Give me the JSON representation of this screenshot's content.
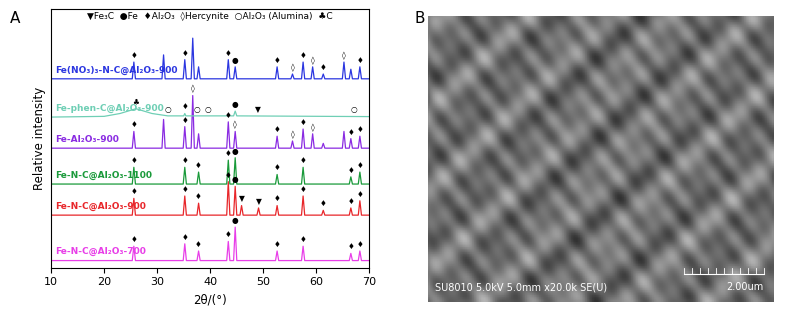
{
  "chart_data": {
    "type": "line",
    "panel_label": "A",
    "xlabel": "2θ/(°)",
    "ylabel": "Relative intensity",
    "xlim": [
      10,
      70
    ],
    "xticks": [
      10,
      20,
      30,
      40,
      50,
      60,
      70
    ],
    "ylim": [
      0,
      108
    ],
    "yticks": [],
    "tick_labels": "x",
    "phase_legend": [
      {
        "symbol": "▼",
        "name": "Fe₃C"
      },
      {
        "symbol": "●",
        "name": "Fe"
      },
      {
        "symbol": "♦",
        "name": "Al₂O₃"
      },
      {
        "symbol": "◊",
        "name": "Hercynite"
      },
      {
        "symbol": "○",
        "name": "Al₂O₃ (Alumina)"
      },
      {
        "symbol": "♣",
        "name": "C"
      }
    ],
    "series": [
      {
        "name": "Fe-N-C@Al₂O₃-700",
        "color": "#e83ee8",
        "x": [
          10,
          25.3,
          25.6,
          25.9,
          34.9,
          35.2,
          35.5,
          37.5,
          37.8,
          38.1,
          43.1,
          43.4,
          43.7,
          44.4,
          44.7,
          45.0,
          52.3,
          52.6,
          52.9,
          57.2,
          57.5,
          57.8,
          66.2,
          66.5,
          66.8,
          67.9,
          68.2,
          68.5,
          70
        ],
        "values": [
          3,
          3,
          9,
          3,
          3,
          10,
          3,
          3,
          7,
          3,
          3,
          11,
          3,
          3,
          17,
          3,
          3,
          7,
          3,
          3,
          9,
          3,
          3,
          6,
          3,
          3,
          7,
          3,
          3
        ],
        "markers": [
          {
            "symbol": "♦",
            "x": 25.6
          },
          {
            "symbol": "♦",
            "x": 35.2
          },
          {
            "symbol": "♦",
            "x": 37.8
          },
          {
            "symbol": "♦",
            "x": 43.4
          },
          {
            "symbol": "●",
            "x": 44.7
          },
          {
            "symbol": "♦",
            "x": 52.6
          },
          {
            "symbol": "♦",
            "x": 57.5
          },
          {
            "symbol": "♦",
            "x": 66.5
          },
          {
            "symbol": "♦",
            "x": 68.2
          }
        ]
      },
      {
        "name": "Fe-N-C@Al₂O₃-900",
        "color": "#e8262a",
        "x": [
          10,
          25.3,
          25.6,
          25.9,
          34.9,
          35.2,
          35.5,
          37.5,
          37.8,
          38.1,
          43.1,
          43.4,
          43.7,
          44.4,
          44.7,
          45.0,
          45.6,
          45.9,
          46.2,
          48.8,
          49.1,
          49.4,
          52.3,
          52.6,
          52.9,
          57.2,
          57.5,
          57.8,
          61.0,
          61.3,
          61.6,
          66.2,
          66.5,
          66.8,
          67.9,
          68.2,
          68.5,
          70
        ],
        "values": [
          22,
          22,
          29,
          22,
          22,
          30,
          22,
          22,
          27,
          22,
          22,
          36,
          22,
          22,
          34,
          22,
          22,
          26,
          22,
          22,
          25,
          22,
          22,
          26,
          22,
          22,
          30,
          22,
          22,
          24,
          22,
          22,
          25,
          22,
          22,
          28,
          22,
          22
        ],
        "markers": [
          {
            "symbol": "♦",
            "x": 25.6
          },
          {
            "symbol": "♦",
            "x": 35.2
          },
          {
            "symbol": "♦",
            "x": 37.8
          },
          {
            "symbol": "♦",
            "x": 43.4
          },
          {
            "symbol": "●",
            "x": 44.7
          },
          {
            "symbol": "▼",
            "x": 45.9
          },
          {
            "symbol": "▼",
            "x": 49.1
          },
          {
            "symbol": "♦",
            "x": 52.6
          },
          {
            "symbol": "♦",
            "x": 57.5
          },
          {
            "symbol": "♦",
            "x": 61.3
          },
          {
            "symbol": "♦",
            "x": 66.5
          },
          {
            "symbol": "♦",
            "x": 68.2
          }
        ]
      },
      {
        "name": "Fe-N-C@Al₂O₃-1100",
        "color": "#1a9a3a",
        "x": [
          10,
          25.3,
          25.6,
          25.9,
          34.9,
          35.2,
          35.5,
          37.5,
          37.8,
          38.1,
          43.1,
          43.4,
          43.7,
          44.4,
          44.7,
          45.0,
          52.3,
          52.6,
          52.9,
          57.2,
          57.5,
          57.8,
          66.2,
          66.5,
          66.8,
          67.9,
          68.2,
          68.5,
          70
        ],
        "values": [
          35,
          35,
          42,
          35,
          35,
          42,
          35,
          35,
          40,
          35,
          35,
          45,
          35,
          35,
          46,
          35,
          35,
          39,
          35,
          35,
          42,
          35,
          35,
          38,
          35,
          35,
          40,
          35,
          35
        ],
        "markers": [
          {
            "symbol": "♦",
            "x": 25.6
          },
          {
            "symbol": "♦",
            "x": 35.2
          },
          {
            "symbol": "♦",
            "x": 37.8
          },
          {
            "symbol": "♦",
            "x": 43.4
          },
          {
            "symbol": "●",
            "x": 44.7
          },
          {
            "symbol": "♦",
            "x": 52.6
          },
          {
            "symbol": "♦",
            "x": 57.5
          },
          {
            "symbol": "♦",
            "x": 66.5
          },
          {
            "symbol": "♦",
            "x": 68.2
          }
        ]
      },
      {
        "name": "Fe-Al₂O₃-900",
        "color": "#8a2be2",
        "x": [
          10,
          25.3,
          25.6,
          25.9,
          30.9,
          31.2,
          31.5,
          34.9,
          35.2,
          35.5,
          36.4,
          36.7,
          37.0,
          37.5,
          37.8,
          38.1,
          43.1,
          43.4,
          43.7,
          44.4,
          44.7,
          45.0,
          52.3,
          52.6,
          52.9,
          55.2,
          55.5,
          55.8,
          57.2,
          57.5,
          57.8,
          59.0,
          59.3,
          59.6,
          61.0,
          61.3,
          61.6,
          64.9,
          65.2,
          65.5,
          66.2,
          66.5,
          66.8,
          67.9,
          68.2,
          68.5,
          70
        ],
        "values": [
          50,
          50,
          57,
          50,
          50,
          62,
          50,
          50,
          59,
          50,
          50,
          72,
          50,
          50,
          56,
          50,
          50,
          61,
          50,
          50,
          57,
          50,
          50,
          55,
          50,
          50,
          53,
          50,
          50,
          58,
          50,
          50,
          56,
          50,
          50,
          52,
          50,
          50,
          57,
          50,
          50,
          54,
          50,
          50,
          55,
          50,
          50
        ],
        "markers": [
          {
            "symbol": "♦",
            "x": 25.6
          },
          {
            "symbol": "♦",
            "x": 35.2
          },
          {
            "symbol": "◊",
            "x": 36.7
          },
          {
            "symbol": "♦",
            "x": 43.4
          },
          {
            "symbol": "◊",
            "x": 44.7
          },
          {
            "symbol": "♦",
            "x": 52.6
          },
          {
            "symbol": "◊",
            "x": 55.5
          },
          {
            "symbol": "♦",
            "x": 57.5
          },
          {
            "symbol": "◊",
            "x": 59.3
          },
          {
            "symbol": "♦",
            "x": 66.5
          },
          {
            "symbol": "♦",
            "x": 68.2
          }
        ]
      },
      {
        "name": "Fe-phen-C@Al₂O₃-900",
        "color": "#6fcfb5",
        "x": [
          10,
          20,
          23,
          26,
          29,
          32,
          35,
          35.2,
          35.4,
          44.4,
          44.7,
          45.0,
          70
        ],
        "values": [
          63,
          63.3,
          64.5,
          66.5,
          64.5,
          63.5,
          63.5,
          64.5,
          63.5,
          63.5,
          65.5,
          63.5,
          63.2
        ],
        "markers": [
          {
            "symbol": "♣",
            "x": 26
          },
          {
            "symbol": "○",
            "x": 32
          },
          {
            "symbol": "♦",
            "x": 35.2
          },
          {
            "symbol": "○",
            "x": 37.5
          },
          {
            "symbol": "○",
            "x": 39.5
          },
          {
            "symbol": "●",
            "x": 44.7
          },
          {
            "symbol": "▼",
            "x": 49
          },
          {
            "symbol": "○",
            "x": 67
          }
        ]
      },
      {
        "name": "Fe(NO₃)₃-N-C@Al₂O₃-900",
        "color": "#2b36e0",
        "x": [
          10,
          25.3,
          25.6,
          25.9,
          30.9,
          31.2,
          31.5,
          34.9,
          35.2,
          35.5,
          36.4,
          36.7,
          37.0,
          37.5,
          37.8,
          38.1,
          43.1,
          43.4,
          43.7,
          44.4,
          44.7,
          45.0,
          52.3,
          52.6,
          52.9,
          55.2,
          55.5,
          55.8,
          57.2,
          57.5,
          57.8,
          59.0,
          59.3,
          59.6,
          61.0,
          61.3,
          61.6,
          64.9,
          65.2,
          65.5,
          66.2,
          66.5,
          66.8,
          67.9,
          68.2,
          68.5,
          70
        ],
        "values": [
          79,
          79,
          86,
          79,
          79,
          89,
          79,
          79,
          87,
          79,
          79,
          96,
          79,
          79,
          84,
          79,
          79,
          87,
          79,
          79,
          84,
          79,
          79,
          84,
          79,
          79,
          81,
          79,
          79,
          86,
          79,
          79,
          84,
          79,
          79,
          81,
          79,
          79,
          86,
          79,
          79,
          83,
          79,
          79,
          84,
          79,
          79
        ],
        "markers": [
          {
            "symbol": "♦",
            "x": 25.6
          },
          {
            "symbol": "♦",
            "x": 35.2
          },
          {
            "symbol": "♦",
            "x": 43.4
          },
          {
            "symbol": "●",
            "x": 44.7
          },
          {
            "symbol": "♦",
            "x": 52.6
          },
          {
            "symbol": "◊",
            "x": 55.5
          },
          {
            "symbol": "♦",
            "x": 57.5
          },
          {
            "symbol": "◊",
            "x": 59.3
          },
          {
            "symbol": "♦",
            "x": 61.3
          },
          {
            "symbol": "◊",
            "x": 65.2
          },
          {
            "symbol": "♦",
            "x": 68.2
          }
        ]
      }
    ]
  },
  "image_panel": {
    "panel_label": "B",
    "caption": "SU8010 5.0kV 5.0mm x20.0k SE(U)",
    "scale_bar": "2.00um"
  }
}
